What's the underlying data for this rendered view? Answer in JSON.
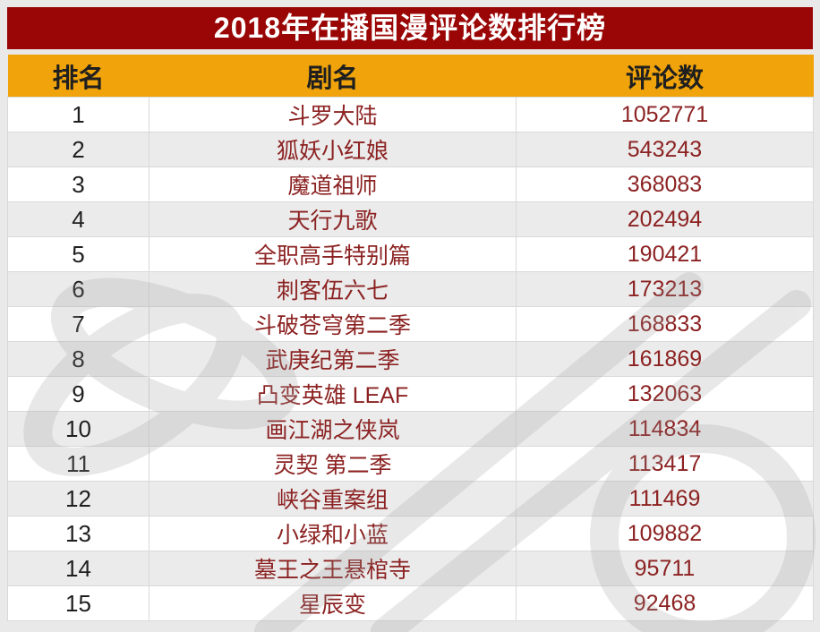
{
  "page": {
    "title": "2018年在播国漫评论数排行榜"
  },
  "table": {
    "headers": {
      "rank": "排名",
      "name": "剧名",
      "comments": "评论数"
    },
    "rows": [
      {
        "rank": "1",
        "name": "斗罗大陆",
        "comments": "1052771"
      },
      {
        "rank": "2",
        "name": "狐妖小红娘",
        "comments": "543243"
      },
      {
        "rank": "3",
        "name": "魔道祖师",
        "comments": "368083"
      },
      {
        "rank": "4",
        "name": "天行九歌",
        "comments": "202494"
      },
      {
        "rank": "5",
        "name": "全职高手特别篇",
        "comments": "190421"
      },
      {
        "rank": "6",
        "name": "刺客伍六七",
        "comments": "173213"
      },
      {
        "rank": "7",
        "name": "斗破苍穹第二季",
        "comments": "168833"
      },
      {
        "rank": "8",
        "name": "武庚纪第二季",
        "comments": "161869"
      },
      {
        "rank": "9",
        "name": "凸变英雄 LEAF",
        "comments": "132063"
      },
      {
        "rank": "10",
        "name": "画江湖之侠岚",
        "comments": "114834"
      },
      {
        "rank": "11",
        "name": "灵契 第二季",
        "comments": "113417"
      },
      {
        "rank": "12",
        "name": "峡谷重案组",
        "comments": "111469"
      },
      {
        "rank": "13",
        "name": "小绿和小蓝",
        "comments": "109882"
      },
      {
        "rank": "14",
        "name": "墓王之王悬棺寺",
        "comments": "95711"
      },
      {
        "rank": "15",
        "name": "星辰变",
        "comments": "92468"
      }
    ]
  },
  "colors": {
    "page_bg": "#e9e9e9",
    "title_bg": "#9a0505",
    "title_text": "#ffffff",
    "header_bg": "#f0a30a",
    "header_text": "#1f1f1f",
    "row_bg": "#ffffff",
    "row_alt_bg": "#ebebeb",
    "row_text": "#8c2222",
    "rank_text": "#1f1f1f",
    "watermark_color": "#9b9b9b"
  },
  "chart_data": {
    "type": "table",
    "title": "2018年在播国漫评论数排行榜",
    "columns": [
      "排名",
      "剧名",
      "评论数"
    ],
    "rows": [
      [
        1,
        "斗罗大陆",
        1052771
      ],
      [
        2,
        "狐妖小红娘",
        543243
      ],
      [
        3,
        "魔道祖师",
        368083
      ],
      [
        4,
        "天行九歌",
        202494
      ],
      [
        5,
        "全职高手特别篇",
        190421
      ],
      [
        6,
        "刺客伍六七",
        173213
      ],
      [
        7,
        "斗破苍穹第二季",
        168833
      ],
      [
        8,
        "武庚纪第二季",
        161869
      ],
      [
        9,
        "凸变英雄 LEAF",
        132063
      ],
      [
        10,
        "画江湖之侠岚",
        114834
      ],
      [
        11,
        "灵契 第二季",
        113417
      ],
      [
        12,
        "峡谷重案组",
        111469
      ],
      [
        13,
        "小绿和小蓝",
        109882
      ],
      [
        14,
        "墓王之王悬棺寺",
        95711
      ],
      [
        15,
        "星辰变",
        92468
      ]
    ]
  }
}
